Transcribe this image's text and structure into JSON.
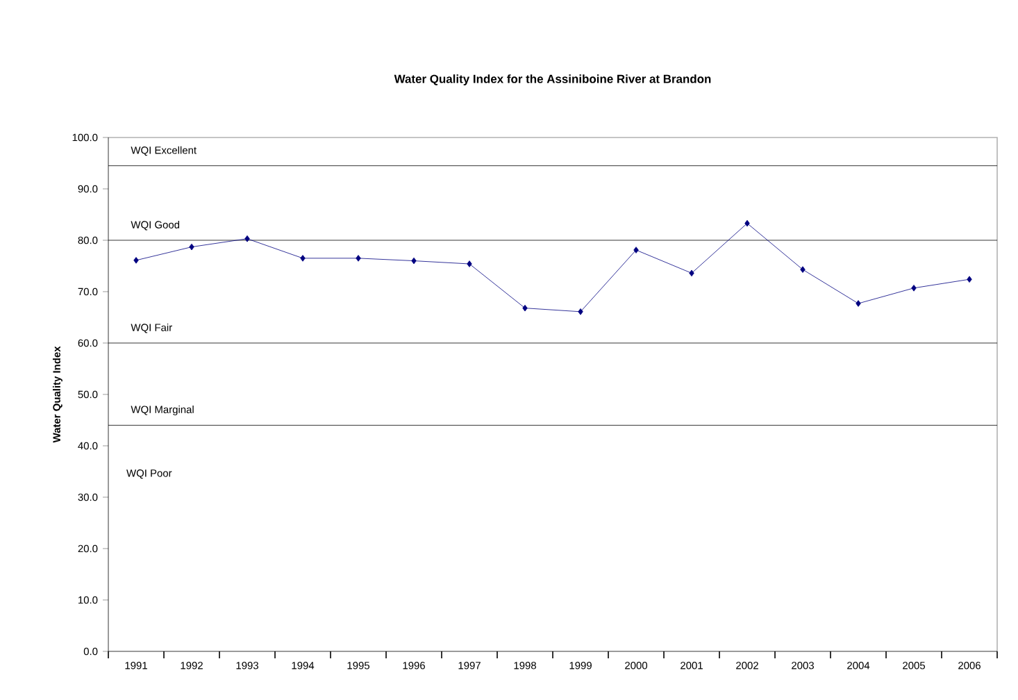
{
  "chart_data": {
    "type": "line",
    "title": "Water Quality Index for the Assiniboine River at Brandon",
    "ylabel": "Water Quality Index",
    "categories": [
      "1991",
      "1992",
      "1993",
      "1994",
      "1995",
      "1996",
      "1997",
      "1998",
      "1999",
      "2000",
      "2001",
      "2002",
      "2003",
      "2004",
      "2005",
      "2006"
    ],
    "series": [
      {
        "color": "#000080",
        "values": [
          76.1,
          78.7,
          80.3,
          76.5,
          76.5,
          76.0,
          75.4,
          66.8,
          66.1,
          78.1,
          73.6,
          83.3,
          74.3,
          67.7,
          70.7,
          72.4
        ]
      }
    ],
    "ylim": [
      0,
      100
    ],
    "yticks": [
      {
        "value": 0,
        "label": "0.0"
      },
      {
        "value": 10,
        "label": "10.0"
      },
      {
        "value": 20,
        "label": "20.0"
      },
      {
        "value": 30,
        "label": "30.0"
      },
      {
        "value": 40,
        "label": "40.0"
      },
      {
        "value": 50,
        "label": "50.0"
      },
      {
        "value": 60,
        "label": "60.0"
      },
      {
        "value": 70,
        "label": "70.0"
      },
      {
        "value": 80,
        "label": "80.0"
      },
      {
        "value": 90,
        "label": "90.0"
      },
      {
        "value": 100,
        "label": "100.0"
      }
    ],
    "ref_lines": [
      {
        "axis": "y",
        "value": 94.5,
        "color": "#000000",
        "label": "WQI Excellent"
      },
      {
        "axis": "y",
        "value": 80,
        "color": "#000000",
        "label": "WQI Good"
      },
      {
        "axis": "y",
        "value": 60,
        "color": "#000000",
        "label": "WQI Fair"
      },
      {
        "axis": "y",
        "value": 44,
        "color": "#000000",
        "label": "WQI Marginal"
      }
    ],
    "annotations": [
      "WQI Poor"
    ],
    "marker": "diamond",
    "line_style": "solid"
  }
}
